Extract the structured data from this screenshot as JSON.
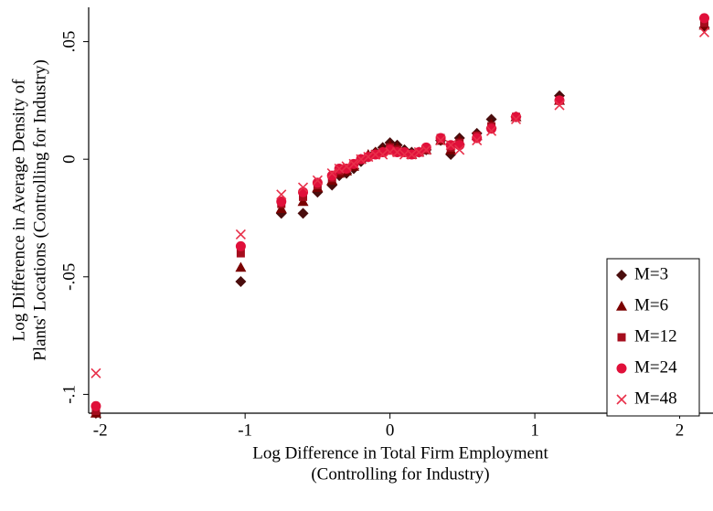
{
  "chart_data": {
    "type": "scatter",
    "xlabel": [
      "Log Difference in Total Firm Employment",
      "(Controlling for Industry)"
    ],
    "ylabel": [
      "Log Difference in Average Density of",
      "Plants' Locations (Controlling for Industry)"
    ],
    "xlim": [
      -2.08,
      2.23
    ],
    "ylim": [
      -0.108,
      0.0646
    ],
    "xticks": [
      -2,
      -1,
      0,
      1,
      2
    ],
    "yticks": [
      {
        "value": 0.05,
        "label": ".05"
      },
      0,
      {
        "value": -0.05,
        "label": "-.05"
      },
      {
        "value": -0.1,
        "label": "-.1"
      }
    ],
    "grid": false,
    "legend": "bottom-right",
    "x": [
      -2.03,
      -1.03,
      -0.75,
      -0.6,
      -0.5,
      -0.4,
      -0.35,
      -0.3,
      -0.25,
      -0.2,
      -0.15,
      -0.1,
      -0.05,
      0,
      0.05,
      0.1,
      0.15,
      0.2,
      0.25,
      0.35,
      0.42,
      0.48,
      0.6,
      0.7,
      0.87,
      1.17,
      2.17
    ],
    "series": [
      {
        "name": "M=3",
        "color": "#4a0d0d",
        "marker": "diamond",
        "values": [
          -0.108,
          -0.052,
          -0.023,
          -0.023,
          -0.014,
          -0.011,
          -0.007,
          -0.006,
          -0.004,
          -0.001,
          0.001,
          0.003,
          0.005,
          0.007,
          0.006,
          0.004,
          0.003,
          0.003,
          0.004,
          0.008,
          0.002,
          0.009,
          0.011,
          0.017,
          0.018,
          0.027,
          0.056
        ]
      },
      {
        "name": "M=6",
        "color": "#7a0000",
        "marker": "triangle",
        "values": [
          -0.108,
          -0.046,
          -0.021,
          -0.018,
          -0.012,
          -0.009,
          -0.006,
          -0.005,
          -0.003,
          0,
          0.002,
          0.003,
          0.004,
          0.006,
          0.005,
          0.003,
          0.002,
          0.003,
          0.004,
          0.008,
          0.004,
          0.008,
          0.01,
          0.015,
          0.018,
          0.025,
          0.057
        ]
      },
      {
        "name": "M=12",
        "color": "#a50d1d",
        "marker": "square",
        "values": [
          -0.107,
          -0.04,
          -0.019,
          -0.016,
          -0.011,
          -0.008,
          -0.005,
          -0.004,
          -0.002,
          0,
          0.001,
          0.002,
          0.003,
          0.005,
          0.004,
          0.003,
          0.002,
          0.003,
          0.004,
          0.009,
          0.005,
          0.007,
          0.01,
          0.014,
          0.018,
          0.025,
          0.058
        ]
      },
      {
        "name": "M=24",
        "color": "#e0103a",
        "marker": "circle",
        "values": [
          -0.105,
          -0.037,
          -0.018,
          -0.014,
          -0.01,
          -0.007,
          -0.004,
          -0.004,
          -0.002,
          0,
          0.001,
          0.002,
          0.003,
          0.004,
          0.003,
          0.003,
          0.002,
          0.003,
          0.005,
          0.009,
          0.006,
          0.006,
          0.009,
          0.013,
          0.018,
          0.025,
          0.06
        ]
      },
      {
        "name": "M=48",
        "color": "#e8304a",
        "marker": "x",
        "values": [
          -0.091,
          -0.032,
          -0.015,
          -0.012,
          -0.009,
          -0.006,
          -0.004,
          -0.003,
          -0.002,
          0,
          0.001,
          0.002,
          0.002,
          0.003,
          0.003,
          0.002,
          0.002,
          0.003,
          0.004,
          0.008,
          0.006,
          0.004,
          0.008,
          0.012,
          0.017,
          0.023,
          0.054
        ]
      }
    ]
  }
}
